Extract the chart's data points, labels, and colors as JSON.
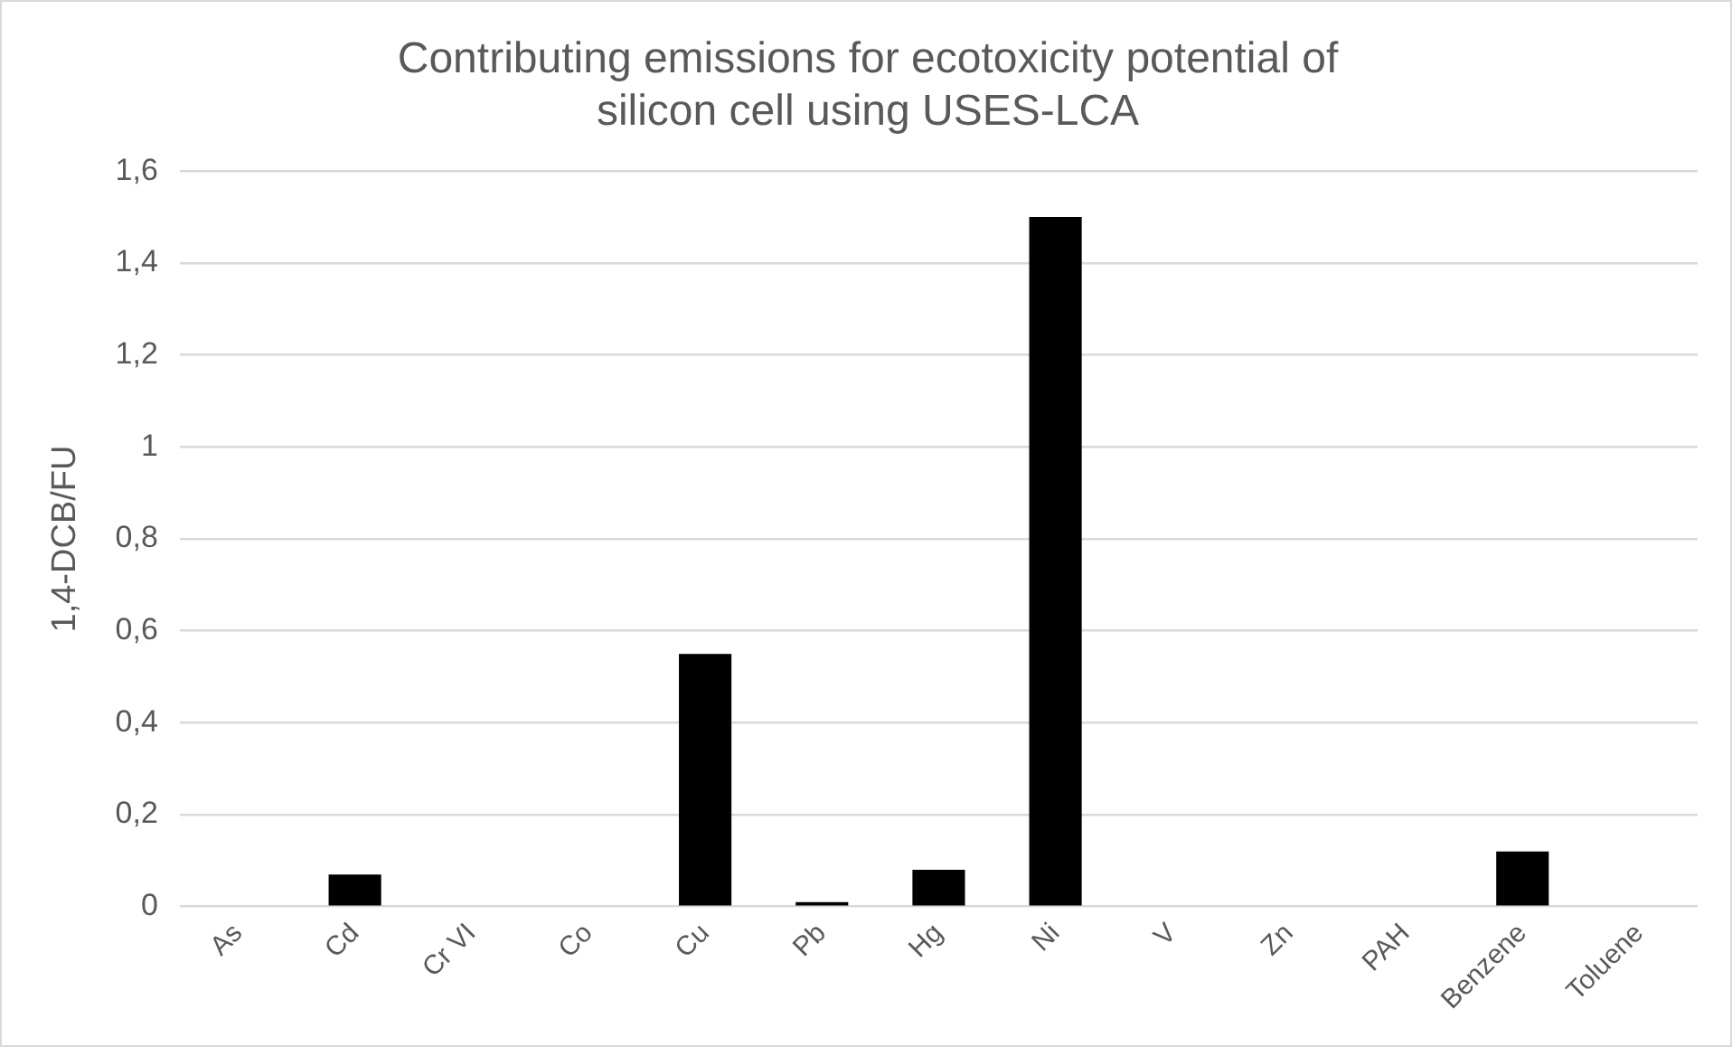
{
  "chart_data": {
    "type": "bar",
    "title": "Contributing emissions for ecotoxicity potential of silicon cell using USES-LCA",
    "ylabel": "1,4-DCB/FU",
    "categories": [
      "As",
      "Cd",
      "Cr VI",
      "Co",
      "Cu",
      "Pb",
      "Hg",
      "Ni",
      "V",
      "Zn",
      "PAH",
      "Benzene",
      "Toluene"
    ],
    "values": [
      0,
      0.07,
      0,
      0,
      0.55,
      0.01,
      0.08,
      1.5,
      0,
      0,
      0,
      0.12,
      0
    ],
    "color": "#000000",
    "ylim": [
      0,
      1.6
    ],
    "yticks": [
      0,
      {
        "value": 0.2,
        "label": "0,2"
      },
      {
        "value": 0.4,
        "label": "0,4"
      },
      {
        "value": 0.6,
        "label": "0,6"
      },
      {
        "value": 0.8,
        "label": "0,8"
      },
      1,
      {
        "value": 1.2,
        "label": "1,2"
      },
      {
        "value": 1.4,
        "label": "1,4"
      },
      {
        "value": 1.6,
        "label": "1,6"
      }
    ],
    "grid": "y",
    "legend": false
  }
}
